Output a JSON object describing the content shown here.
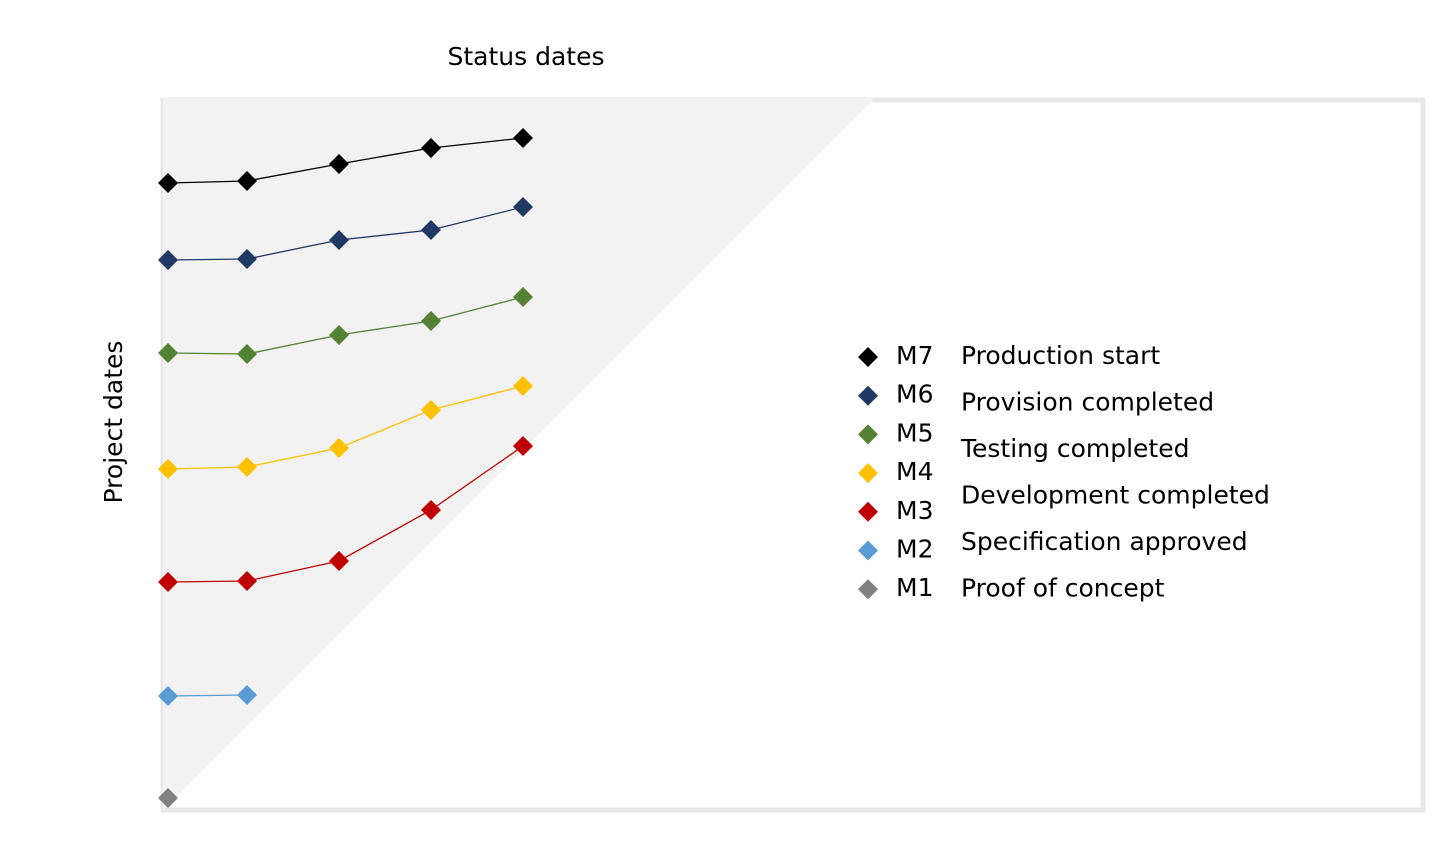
{
  "chart_data": {
    "type": "line",
    "x_label": "Status dates",
    "y_label": "Project dates",
    "x": [
      0.5,
      8.4,
      17.6,
      26.8,
      36
    ],
    "xlim": [
      0,
      126
    ],
    "ylim": [
      0,
      71
    ],
    "grid": false,
    "diagonal": true,
    "series": [
      {
        "name": "M7",
        "description": "Production start",
        "color": "#000000",
        "values": [
          62.7,
          62.9,
          64.6,
          66.2,
          67.2
        ]
      },
      {
        "name": "M6",
        "description": "Provision completed",
        "color": "#203864",
        "values": [
          55,
          55.1,
          57,
          58,
          60.3
        ]
      },
      {
        "name": "M5",
        "description": "Testing completed",
        "color": "#548235",
        "values": [
          45.7,
          45.6,
          47.5,
          48.9,
          51.3
        ]
      },
      {
        "name": "M4",
        "description": "Development completed",
        "color": "#ffc000",
        "values": [
          34.1,
          34.3,
          36.2,
          40,
          42.4
        ]
      },
      {
        "name": "M3",
        "description": "Specification approved",
        "color": "#c00000",
        "values": [
          22.8,
          22.9,
          24.9,
          30,
          36.4
        ]
      },
      {
        "name": "M2",
        "description": "Proof of concept",
        "color": "#5b9bd5",
        "values": [
          11.4,
          11.5,
          null,
          null,
          null
        ]
      },
      {
        "name": "M1",
        "description": null,
        "color": "#808080",
        "values": [
          1.2,
          null,
          null,
          null,
          null
        ]
      }
    ]
  }
}
